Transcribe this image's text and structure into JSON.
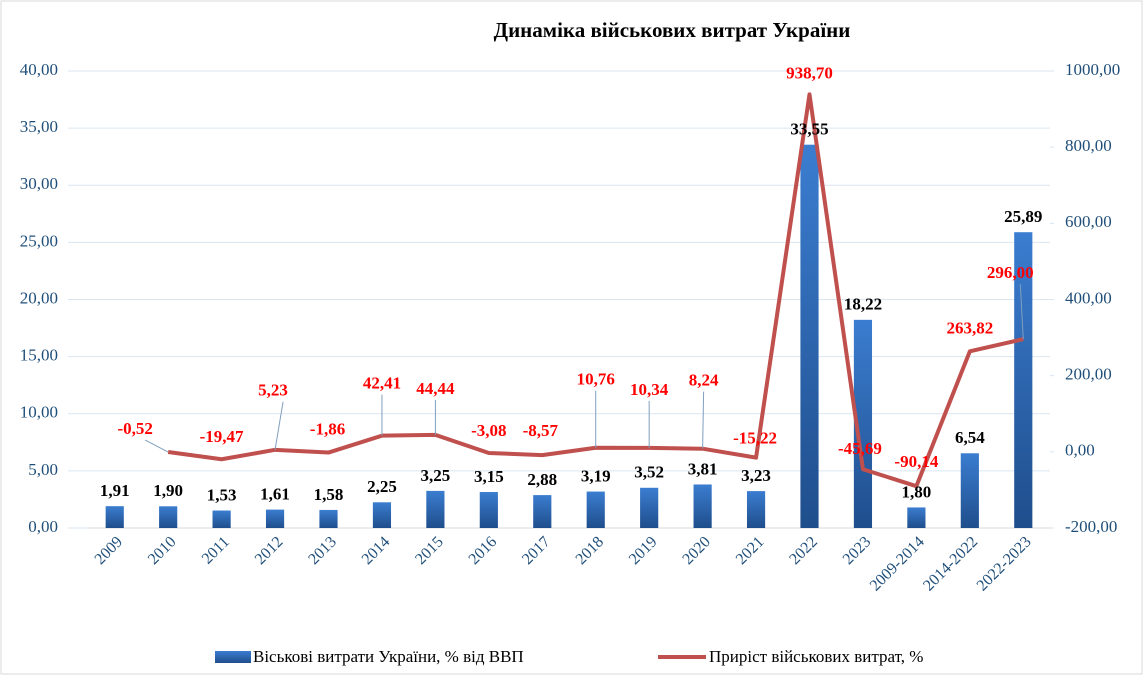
{
  "chart_data": {
    "type": "bar-line",
    "title": "Динаміка військових витрат України",
    "categories": [
      "2009",
      "2010",
      "2011",
      "2012",
      "2013",
      "2014",
      "2015",
      "2016",
      "2017",
      "2018",
      "2019",
      "2020",
      "2021",
      "2022",
      "2023",
      "2009-2014",
      "2014-2022",
      "2022-2023"
    ],
    "series": [
      {
        "name": "Віськові витрати України, % від ВВП",
        "type": "bar",
        "color": "#2e6bbf",
        "values": [
          1.91,
          1.9,
          1.53,
          1.61,
          1.58,
          2.25,
          3.25,
          3.15,
          2.88,
          3.19,
          3.52,
          3.81,
          3.23,
          33.55,
          18.22,
          1.8,
          6.54,
          25.89
        ],
        "value_labels": [
          "1,91",
          "1,90",
          "1,53",
          "1,61",
          "1,58",
          "2,25",
          "3,25",
          "3,15",
          "2,88",
          "3,19",
          "3,52",
          "3,81",
          "3,23",
          "33,55",
          "18,22",
          "1,80",
          "6,54",
          "25,89"
        ]
      },
      {
        "name": "Приріст військових витрат, %",
        "type": "line",
        "axis": "y2",
        "color": "#c0504d",
        "values": [
          null,
          -0.52,
          -19.47,
          5.23,
          -1.86,
          42.41,
          44.44,
          -3.08,
          -8.57,
          10.76,
          10.34,
          8.24,
          -15.22,
          938.7,
          -45.69,
          -90.14,
          263.82,
          296.0
        ],
        "value_labels": [
          null,
          "-0,52",
          "-19,47",
          "5,23",
          "-1,86",
          "42,41",
          "44,44",
          "-3,08",
          "-8,57",
          "10,76",
          "10,34",
          "8,24",
          "-15,22",
          "938,70",
          "-45,69",
          "-90,14",
          "263,82",
          "296,00"
        ]
      }
    ],
    "ylim": [
      0,
      40
    ],
    "yticks": [
      {
        "value": 0,
        "label": "0,00"
      },
      {
        "value": 5,
        "label": "5,00"
      },
      {
        "value": 10,
        "label": "10,00"
      },
      {
        "value": 15,
        "label": "15,00"
      },
      {
        "value": 20,
        "label": "20,00"
      },
      {
        "value": 25,
        "label": "25,00"
      },
      {
        "value": 30,
        "label": "30,00"
      },
      {
        "value": 35,
        "label": "35,00"
      },
      {
        "value": 40,
        "label": "40,00"
      }
    ],
    "y2lim": [
      -200,
      1000
    ],
    "y2ticks": [
      {
        "value": -200,
        "label": "-200,00"
      },
      {
        "value": 0,
        "label": "0,00"
      },
      {
        "value": 200,
        "label": "200,00"
      },
      {
        "value": 400,
        "label": "400,00"
      },
      {
        "value": 600,
        "label": "600,00"
      },
      {
        "value": 800,
        "label": "800,00"
      },
      {
        "value": 1000,
        "label": "1000,00"
      }
    ],
    "grid": true
  }
}
